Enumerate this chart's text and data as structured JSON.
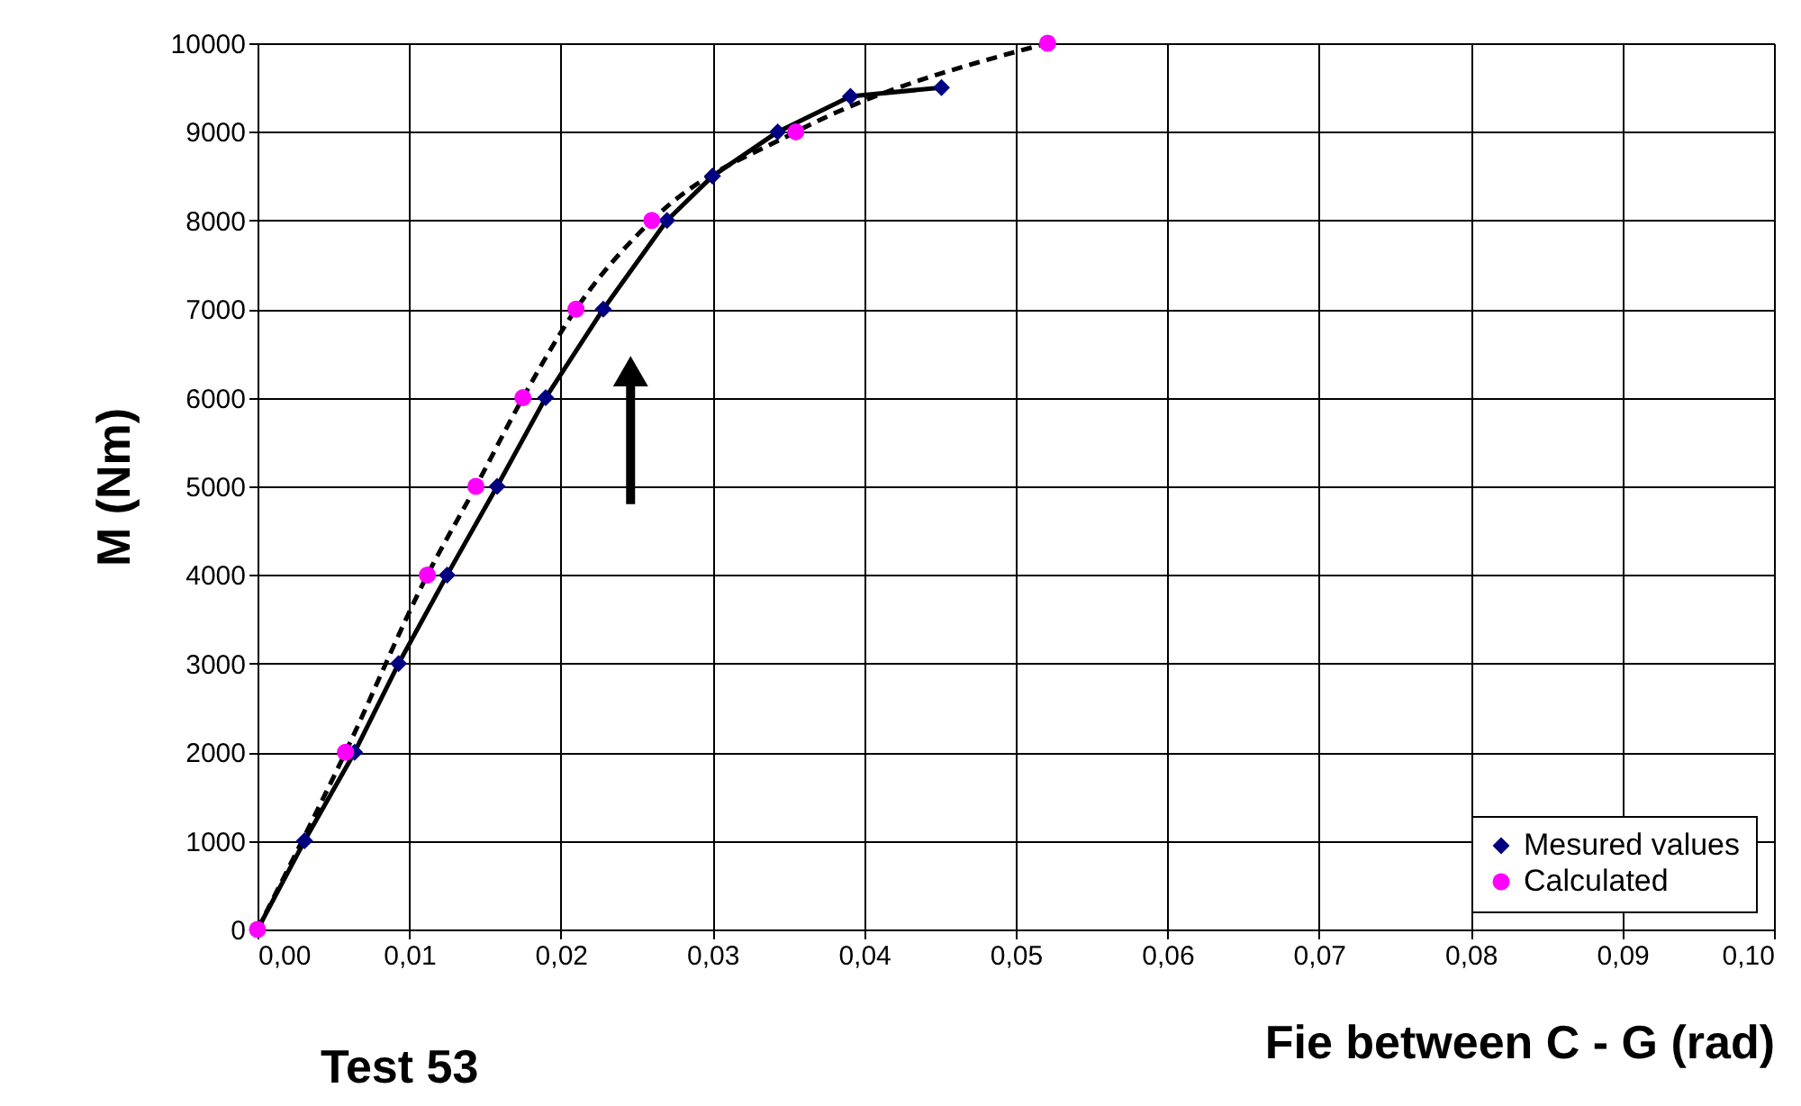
{
  "chart_data": {
    "type": "line",
    "xlabel": "Fie between C - G  (rad)",
    "ylabel": "M  (Nm)",
    "annotations": [
      "Test 53"
    ],
    "xlim": [
      0,
      0.1
    ],
    "xticks": [
      {
        "value": 0,
        "label": "0,00"
      },
      {
        "value": 0.01,
        "label": "0,01"
      },
      {
        "value": 0.02,
        "label": "0,02"
      },
      {
        "value": 0.03,
        "label": "0,03"
      },
      {
        "value": 0.04,
        "label": "0,04"
      },
      {
        "value": 0.05,
        "label": "0,05"
      },
      {
        "value": 0.06,
        "label": "0,06"
      },
      {
        "value": 0.07,
        "label": "0,07"
      },
      {
        "value": 0.08,
        "label": "0,08"
      },
      {
        "value": 0.09,
        "label": "0,09"
      },
      {
        "value": 0.1,
        "label": "0,10"
      }
    ],
    "ylim": [
      0,
      10000
    ],
    "yticks": [
      0,
      1000,
      2000,
      3000,
      4000,
      5000,
      6000,
      7000,
      8000,
      9000,
      10000
    ],
    "grid": true,
    "legend": "bottom right",
    "series": [
      {
        "name": "Mesured values",
        "color": "#000080",
        "marker": "diamond",
        "line_style": "solid",
        "x": [
          0,
          0.0031,
          0.0064,
          0.0093,
          0.0125,
          0.0158,
          0.019,
          0.0228,
          0.027,
          0.03,
          0.0343,
          0.0391,
          0.0451
        ],
        "values": [
          0,
          1000,
          2000,
          3000,
          4000,
          5000,
          6000,
          7000,
          8000,
          8500,
          9000,
          9400,
          9500
        ]
      },
      {
        "name": "Calculated",
        "color": "#ff00ff",
        "marker": "circle",
        "line_style": "dashed",
        "x": [
          0,
          0.0058,
          0.0112,
          0.0144,
          0.0175,
          0.021,
          0.026,
          0.0355,
          0.0521
        ],
        "values": [
          0,
          2000,
          4000,
          5000,
          6000,
          7000,
          8000,
          9000,
          10000
        ]
      }
    ]
  }
}
